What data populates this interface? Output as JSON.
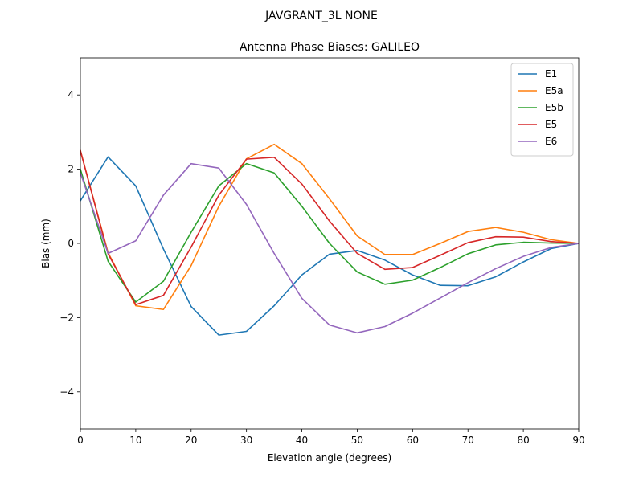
{
  "chart_data": {
    "type": "line",
    "suptitle": "JAVGRANT_3L     NONE",
    "title": "Antenna Phase Biases: GALILEO",
    "xlabel": "Elevation angle (degrees)",
    "ylabel": "Bias (mm)",
    "xlim": [
      0,
      90
    ],
    "ylim": [
      -5,
      5
    ],
    "xticks": [
      0,
      10,
      20,
      30,
      40,
      50,
      60,
      70,
      80,
      90
    ],
    "yticks": [
      -4,
      -2,
      0,
      2,
      4
    ],
    "xtick_labels": [
      "0",
      "10",
      "20",
      "30",
      "40",
      "50",
      "60",
      "70",
      "80",
      "90"
    ],
    "ytick_labels": [
      "−4",
      "−2",
      "0",
      "2",
      "4"
    ],
    "grid": false,
    "legend_position": "top-right",
    "x": [
      0,
      5,
      10,
      15,
      20,
      25,
      30,
      35,
      40,
      45,
      50,
      55,
      60,
      65,
      70,
      75,
      80,
      85,
      90
    ],
    "series": [
      {
        "name": "E1",
        "color": "#1f77b4",
        "values": [
          1.15,
          2.33,
          1.55,
          -0.15,
          -1.7,
          -2.47,
          -2.37,
          -1.68,
          -0.85,
          -0.29,
          -0.19,
          -0.45,
          -0.85,
          -1.13,
          -1.14,
          -0.9,
          -0.5,
          -0.14,
          0.0
        ]
      },
      {
        "name": "E5a",
        "color": "#ff7f0e",
        "values": [
          2.5,
          -0.25,
          -1.68,
          -1.78,
          -0.6,
          1.0,
          2.28,
          2.67,
          2.15,
          1.2,
          0.2,
          -0.3,
          -0.3,
          0.0,
          0.32,
          0.43,
          0.3,
          0.1,
          0.0
        ]
      },
      {
        "name": "E5b",
        "color": "#2ca02c",
        "values": [
          2.0,
          -0.48,
          -1.58,
          -1.02,
          0.3,
          1.55,
          2.15,
          1.9,
          1.0,
          0.0,
          -0.77,
          -1.1,
          -0.99,
          -0.65,
          -0.28,
          -0.04,
          0.03,
          0.01,
          0.0
        ]
      },
      {
        "name": "E5",
        "color": "#d62728",
        "values": [
          2.5,
          -0.28,
          -1.65,
          -1.4,
          -0.1,
          1.3,
          2.27,
          2.32,
          1.6,
          0.6,
          -0.27,
          -0.7,
          -0.65,
          -0.32,
          0.02,
          0.18,
          0.17,
          0.05,
          0.0
        ]
      },
      {
        "name": "E6",
        "color": "#9467bd",
        "values": [
          1.9,
          -0.27,
          0.07,
          1.3,
          2.15,
          2.03,
          1.05,
          -0.27,
          -1.48,
          -2.2,
          -2.41,
          -2.24,
          -1.88,
          -1.47,
          -1.06,
          -0.68,
          -0.35,
          -0.11,
          0.0
        ]
      }
    ]
  }
}
